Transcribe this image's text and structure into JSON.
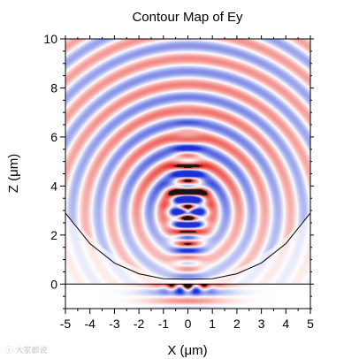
{
  "chart_data": {
    "type": "heatmap",
    "title": "Contour Map of Ey",
    "xlabel": "X (μm)",
    "ylabel": "Z (μm)",
    "xlim": [
      -5,
      5
    ],
    "ylim": [
      -1,
      10
    ],
    "xticks": [
      -5,
      -4,
      -3,
      -2,
      -1,
      0,
      1,
      2,
      3,
      4,
      5
    ],
    "xtick_labels": [
      "-5",
      "-4",
      "-3",
      "-2",
      "-1",
      "0",
      "1",
      "2",
      "3",
      "4",
      "5"
    ],
    "yticks": [
      0,
      2,
      4,
      6,
      8,
      10
    ],
    "ytick_labels": [
      "0",
      "2",
      "4",
      "6",
      "8",
      "10"
    ],
    "colormap": [
      "#1a2fd6",
      "#ffffff",
      "#e8231c"
    ],
    "field_model": {
      "wavelength": 1.05,
      "focus": [
        0,
        2.9
      ],
      "interface_z": 0
    },
    "overlays": [
      {
        "type": "line",
        "label": "interface",
        "x": [
          -5,
          5
        ],
        "y": [
          0,
          0
        ],
        "color": "#000000"
      },
      {
        "type": "curve",
        "label": "lens-surface",
        "x": [
          -5,
          -4,
          -3,
          -2,
          -1,
          0,
          1,
          2,
          3,
          4,
          5
        ],
        "y": [
          2.9,
          1.65,
          0.86,
          0.42,
          0.22,
          0.2,
          0.22,
          0.42,
          0.86,
          1.65,
          2.9
        ],
        "color": "#000000"
      }
    ],
    "grid": false
  },
  "watermark": "ⓒ 大家都说"
}
